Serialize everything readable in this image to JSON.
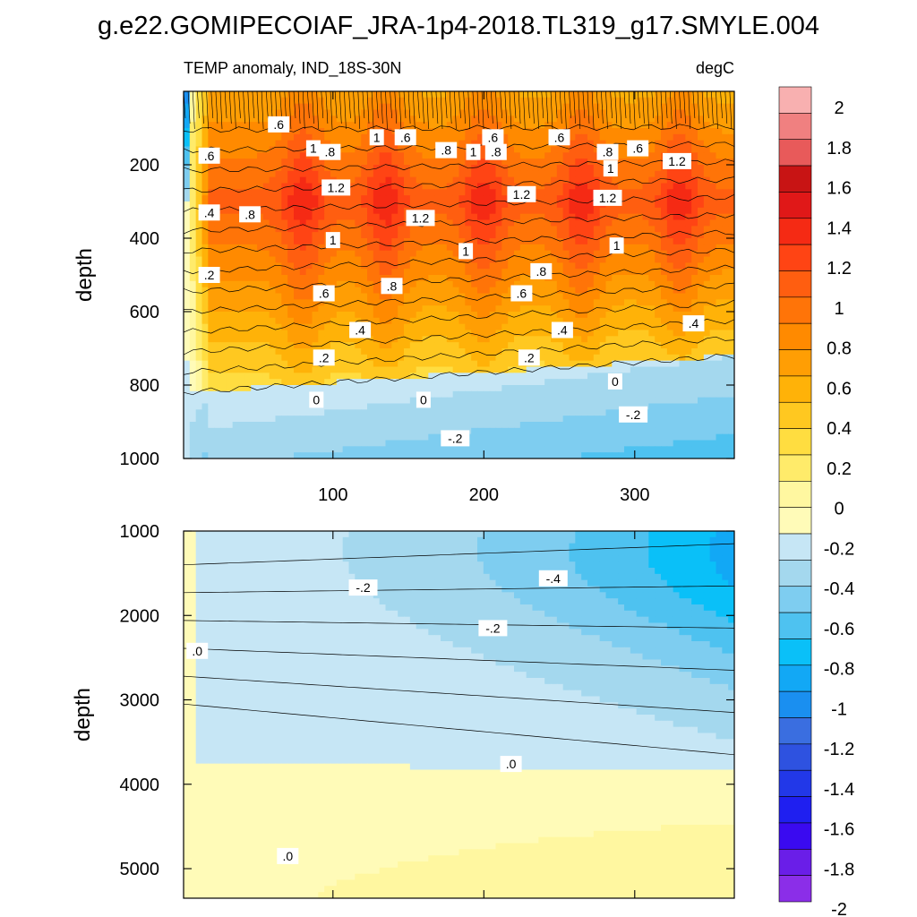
{
  "title": "g.e22.GOMIPECOIAF_JRA-1p4-2018.TL319_g17.SMYLE.004",
  "subtitle_left": "TEMP anomaly, IND_18S-30N",
  "subtitle_right": "degC",
  "colors": {
    "background": "#ffffff",
    "contour_line": "#000000",
    "palette": [
      "#8b2ee8",
      "#6a1ee8",
      "#3a0af0",
      "#1f1ff0",
      "#2238e8",
      "#2e52e0",
      "#3a6ee0",
      "#1a8ff0",
      "#12a8f5",
      "#0ac0f8",
      "#4ec2f0",
      "#7ecdf0",
      "#a4d8ee",
      "#c6e6f5",
      "#fffbb8",
      "#fff7a0",
      "#ffeb6a",
      "#ffdd40",
      "#ffc820",
      "#ffb208",
      "#ff9e04",
      "#ff8a00",
      "#ff7408",
      "#ff5e10",
      "#ff4414",
      "#f52a14",
      "#e01818",
      "#c81414",
      "#e85a5a",
      "#f08080",
      "#f8b0b0"
    ]
  },
  "chart_data": {
    "type": "heatmap",
    "description_units": "degC",
    "x_axis": {
      "label": "",
      "range": [
        1,
        366
      ],
      "ticks": [
        100,
        200,
        300
      ]
    },
    "panels": [
      {
        "name": "upper",
        "ylabel": "depth",
        "y_range": [
          0,
          1000
        ],
        "y_inverted": true,
        "y_ticks": [
          200,
          400,
          600,
          800,
          1000
        ],
        "features": [
          {
            "kind": "warm_core",
            "depth": 300,
            "x_centers": [
              80,
              135,
              200,
              265,
              330
            ],
            "max_value": 1.5
          },
          {
            "kind": "zero_line",
            "depth_start": 820,
            "depth_end": 720
          }
        ],
        "contour_labels": [
          {
            "text": ".6",
            "x": 64,
            "y": 90
          },
          {
            "text": "1",
            "x": 129,
            "y": 125
          },
          {
            "text": ".6",
            "x": 148,
            "y": 125
          },
          {
            "text": ".6",
            "x": 206,
            "y": 125
          },
          {
            "text": ".6",
            "x": 250,
            "y": 125
          },
          {
            "text": "1",
            "x": 87,
            "y": 155
          },
          {
            "text": ".8",
            "x": 98,
            "y": 165
          },
          {
            "text": ".8",
            "x": 175,
            "y": 160
          },
          {
            "text": "1",
            "x": 193,
            "y": 165
          },
          {
            "text": ".8",
            "x": 208,
            "y": 165
          },
          {
            "text": ".8",
            "x": 282,
            "y": 165
          },
          {
            "text": ".6",
            "x": 302,
            "y": 155
          },
          {
            "text": "1.2",
            "x": 328,
            "y": 190
          },
          {
            "text": ".6",
            "x": 18,
            "y": 175
          },
          {
            "text": "1",
            "x": 284,
            "y": 210
          },
          {
            "text": "1.2",
            "x": 102,
            "y": 262
          },
          {
            "text": "1.2",
            "x": 225,
            "y": 280
          },
          {
            "text": "1.2",
            "x": 282,
            "y": 290
          },
          {
            "text": ".4",
            "x": 18,
            "y": 330
          },
          {
            "text": ".8",
            "x": 45,
            "y": 335
          },
          {
            "text": "1.2",
            "x": 158,
            "y": 345
          },
          {
            "text": "1",
            "x": 100,
            "y": 405
          },
          {
            "text": "1",
            "x": 288,
            "y": 420
          },
          {
            "text": "1",
            "x": 188,
            "y": 435
          },
          {
            "text": ".2",
            "x": 18,
            "y": 500
          },
          {
            "text": ".8",
            "x": 238,
            "y": 490
          },
          {
            "text": ".8",
            "x": 139,
            "y": 530
          },
          {
            "text": ".6",
            "x": 94,
            "y": 550
          },
          {
            "text": ".6",
            "x": 225,
            "y": 550
          },
          {
            "text": ".4",
            "x": 339,
            "y": 632
          },
          {
            "text": ".4",
            "x": 118,
            "y": 650
          },
          {
            "text": ".4",
            "x": 252,
            "y": 650
          },
          {
            "text": ".2",
            "x": 94,
            "y": 725
          },
          {
            "text": ".2",
            "x": 230,
            "y": 725
          },
          {
            "text": "0",
            "x": 287,
            "y": 790
          },
          {
            "text": "0",
            "x": 89,
            "y": 840
          },
          {
            "text": "0",
            "x": 160,
            "y": 840
          },
          {
            "text": "-.2",
            "x": 299,
            "y": 880
          },
          {
            "text": "-.2",
            "x": 181,
            "y": 945
          }
        ]
      },
      {
        "name": "lower",
        "ylabel": "depth",
        "y_range": [
          1000,
          5350
        ],
        "y_inverted": true,
        "y_ticks": [
          1000,
          2000,
          3000,
          4000,
          5000
        ],
        "features": [
          {
            "kind": "cold_wedge",
            "depth": 1300,
            "x_start": 250,
            "x_end": 366,
            "min_value": -0.6
          },
          {
            "kind": "zero_line",
            "depth_start": 3750,
            "depth_end": 3850
          }
        ],
        "contour_labels": [
          {
            "text": "-.2",
            "x": 120,
            "y": 1670
          },
          {
            "text": "-.4",
            "x": 246,
            "y": 1560
          },
          {
            "text": "-.2",
            "x": 206,
            "y": 2150
          },
          {
            "text": ".0",
            "x": 10,
            "y": 2420
          },
          {
            "text": ".0",
            "x": 218,
            "y": 3760
          },
          {
            "text": ".0",
            "x": 70,
            "y": 4850
          }
        ]
      }
    ],
    "colorbar": {
      "levels": [
        "2",
        "1.8",
        "1.6",
        "1.4",
        "1.2",
        "1",
        "0.8",
        "0.6",
        "0.4",
        "0.2",
        "0",
        "-0.2",
        "-0.4",
        "-0.6",
        "-0.8",
        "-1",
        "-1.2",
        "-1.4",
        "-1.6",
        "-1.8",
        "-2"
      ],
      "range": [
        -2.1,
        2.1
      ]
    }
  }
}
